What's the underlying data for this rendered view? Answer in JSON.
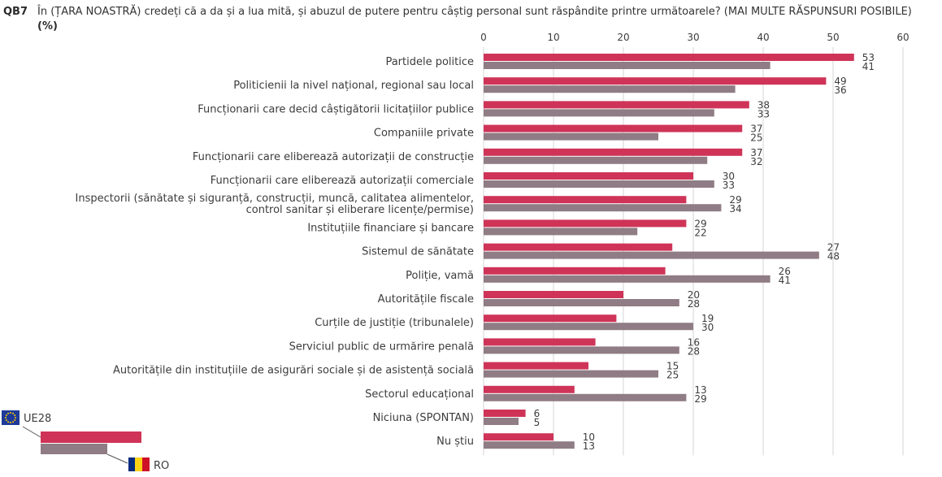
{
  "question": {
    "code": "QB7",
    "text": "În (ȚARA NOASTRĂ) credeți că a da și a lua mită, și abuzul de putere pentru câștig personal sunt răspândite printre următoarele? (MAI MULTE RĂSPUNSURI POSIBILE)",
    "unit": "(%)"
  },
  "colors": {
    "eu": "#cf3458",
    "ro": "#8f7c84",
    "grid": "#d4d4d4",
    "text": "#3c3c3c"
  },
  "legend": {
    "eu_label": "UE28",
    "eu_icon": "eu-flag-icon",
    "ro_label": "RO",
    "ro_icon": "romania-flag-icon"
  },
  "chart_data": {
    "type": "bar",
    "orientation": "horizontal",
    "categories": [
      "Partidele politice",
      "Politicienii la nivel național, regional sau local",
      "Funcționarii care decid câștigătorii licitațiilor publice",
      "Companiile private",
      "Funcționarii care eliberează autorizații de construcție",
      "Funcționarii care eliberează autorizații comerciale",
      "Inspectorii (sănătate și siguranță, construcții, muncă, calitatea alimentelor,\ncontrol sanitar și eliberare licențe/permise)",
      "Instituțiile financiare și bancare",
      "Sistemul de sănătate",
      "Poliție, vamă",
      "Autoritățile fiscale",
      "Curțile de justiție (tribunalele)",
      "Serviciul public de urmărire penală",
      "Autoritățile din instituțiile de asigurări sociale și de asistență socială",
      "Sectorul educațional",
      "Niciuna (SPONTAN)",
      "Nu știu"
    ],
    "series": [
      {
        "name": "UE28",
        "values": [
          53,
          49,
          38,
          37,
          37,
          30,
          29,
          29,
          27,
          26,
          20,
          19,
          16,
          15,
          13,
          6,
          10
        ]
      },
      {
        "name": "RO",
        "values": [
          41,
          36,
          33,
          25,
          32,
          33,
          34,
          22,
          48,
          41,
          28,
          30,
          28,
          25,
          29,
          5,
          13
        ]
      }
    ],
    "xlim": [
      0,
      60
    ],
    "xticks": [
      0,
      10,
      20,
      30,
      40,
      50,
      60
    ],
    "grid": true
  }
}
